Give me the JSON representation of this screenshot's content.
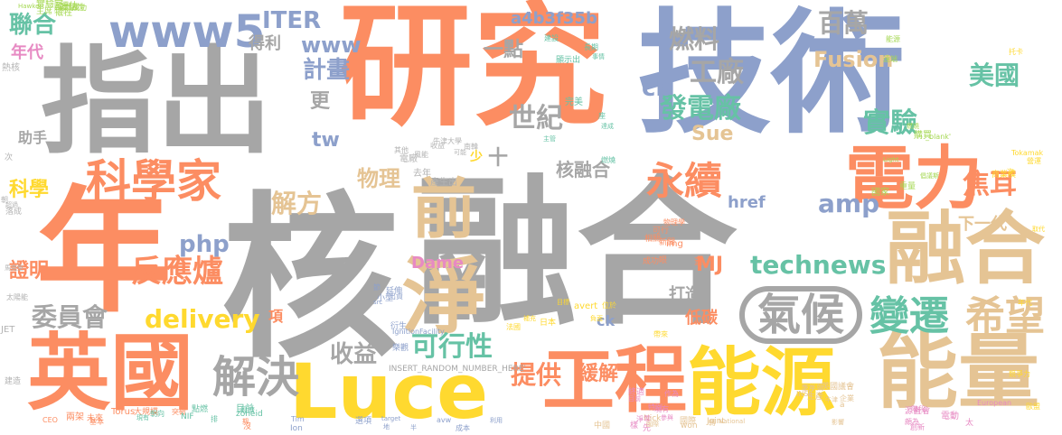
{
  "palette": {
    "gray": "#b3b3b3",
    "orange": "#fc8d62",
    "blue": "#8da0cb",
    "tan": "#e5c494",
    "yellow": "#ffd92f",
    "green": "#66c2a5",
    "pink": "#e78ac3",
    "lime": "#a6d854",
    "background": "#ffffff"
  },
  "words": {
    "hexin": "核",
    "ronghe": "融合",
    "nian": "年",
    "jishu": "技術",
    "yanjiu": "研究",
    "zhichu": "指出",
    "yingguo": "英國",
    "luce": "Luce",
    "nengyuan": "能源",
    "gongcheng": "工程",
    "nengliang": "能量",
    "ronghe2": "融合",
    "dianli": "電力",
    "qian": "前",
    "jing": "淨",
    "qihou": "氣候",
    "kexuejia": "科學家",
    "www5": "www5",
    "bianqian": "變遷",
    "xiwang": "希望",
    "jiejue": "解決",
    "yongxu": "永續",
    "kexingxing": "可行性",
    "fanyinglu": "反應爐",
    "delivery": "delivery",
    "technews": "technews",
    "weiyuanhui": "委員會",
    "shouyi": "收益",
    "tigong": "提供",
    "huanjie": "緩解",
    "jiaoer": "焦耳",
    "fadianchang": "發電廠",
    "shiji": "世紀",
    "gongchang": "工廠",
    "shiyan": "實驗",
    "meiguo": "美國",
    "baiwan": "百萬",
    "ranliao": "燃料",
    "fusion": "Fusion",
    "jihua": "計畫",
    "www": "www",
    "iter": "ITER",
    "lianhe": "聯合",
    "hash": "a4b3f35b",
    "yidian": "一點",
    "cb": "cb",
    "sue": "Sue",
    "amp": "amp",
    "php": "php",
    "mj": "MJ",
    "dame": "Dame",
    "jiefang": "解方",
    "wuli": "物理",
    "hexronghe": "核融合",
    "href": "href",
    "xiayidai": "下一代",
    "dazao": "打造",
    "ditan": "低碳",
    "kexue": "科學",
    "zhengming": "證明",
    "niandai": "年代",
    "tw": "tw",
    "geng": "更",
    "zhushou": "助手",
    "dede": "得利",
    "xiang": "項",
    "ck": "ck",
    "shi": "十",
    "shao": "少",
    "insert": "INSERT_RANDOM_NUMBER_HERE'",
    "small": [
      "馬克型",
      "未來",
      "Ion",
      "國際",
      "托卡",
      "主管",
      "現有",
      "國家",
      "電廠",
      "相關",
      "出資",
      "企業",
      "負面",
      "經濟",
      "創新",
      "成功",
      "落成",
      "突破",
      "target",
      "won",
      "Tokamak",
      "完美",
      "特別",
      "Light",
      "去年",
      "蓋",
      "衍生",
      "INSE",
      "日本",
      "目前",
      "源自",
      "實驗室",
      "建造",
      "大規模",
      "利用",
      "中國",
      "競爭力",
      "事情",
      "終適",
      "倡議斯",
      "牛津大學",
      "物理學",
      "小型",
      "能力",
      "位於",
      "朝向",
      "頗為",
      "評估",
      "太陽能",
      "Torus",
      "Tim",
      "Nick",
      "商業模",
      "座",
      "樣",
      "重量",
      "產生出",
      "新聞",
      "樂觀",
      "a",
      "avert",
      "排",
      "太",
      "主席",
      "朝",
      "期",
      "avw",
      "National",
      "取代",
      "顯示出",
      "淨零",
      "_blank'",
      "南韓",
      "眼",
      "節",
      "生產",
      "目標",
      "zoneid",
      "European",
      "Hawker",
      "JET",
      "CEO",
      "選項",
      "Joint",
      "歐盟",
      "燃燒",
      "目前",
      "購買",
      "風能",
      "成功",
      "IgnitionFacility",
      "英國議會",
      "帶來",
      "NIF",
      "社會",
      "實驗性",
      "超過",
      "兩架",
      "成本",
      "影響",
      "營運",
      "建設",
      "先",
      "燃燒",
      "收益",
      "可行",
      "延伸",
      "牛津",
      "法國",
      "現有",
      "階段",
      "犧牲",
      "熱核",
      "沒",
      "半",
      "國際",
      "次",
      "達成",
      "參與",
      "遠端",
      "其他",
      "img",
      "src",
      "下半葉",
      "補充",
      "點燃",
      "電動",
      "歐洲",
      "次",
      "基本",
      "地",
      "轉",
      "年代",
      "長期",
      "作為",
      "能源",
      "可能"
    ]
  }
}
